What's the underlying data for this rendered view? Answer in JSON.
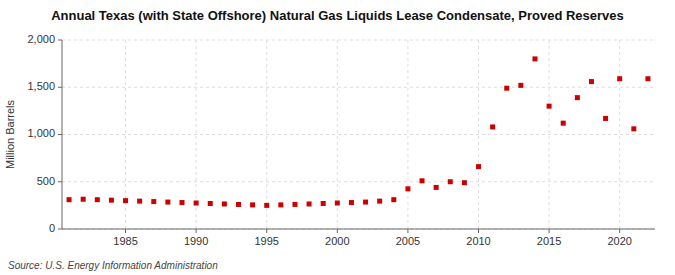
{
  "chart_data": {
    "type": "scatter",
    "title": "Annual Texas (with State Offshore) Natural Gas Liquids Lease Condensate, Proved Reserves",
    "ylabel": "Million Barrels",
    "annotations": [
      "Source: U.S. Energy Information Administration"
    ],
    "x": [
      1981,
      1982,
      1983,
      1984,
      1985,
      1986,
      1987,
      1988,
      1989,
      1990,
      1991,
      1992,
      1993,
      1994,
      1995,
      1996,
      1997,
      1998,
      1999,
      2000,
      2001,
      2002,
      2003,
      2004,
      2005,
      2006,
      2007,
      2008,
      2009,
      2010,
      2011,
      2012,
      2013,
      2014,
      2015,
      2016,
      2017,
      2018,
      2019,
      2020,
      2021,
      2022
    ],
    "values": [
      310,
      315,
      310,
      305,
      300,
      295,
      290,
      285,
      280,
      275,
      270,
      265,
      260,
      255,
      250,
      255,
      260,
      265,
      270,
      275,
      280,
      285,
      295,
      310,
      425,
      510,
      440,
      500,
      490,
      660,
      1080,
      1490,
      1520,
      1800,
      1300,
      1120,
      1390,
      1560,
      1170,
      1590,
      1060,
      1590
    ],
    "color": "#cc0000",
    "marker": "square",
    "xlim": [
      1980.5,
      2022.5
    ],
    "xticks": [
      1985,
      1990,
      1995,
      2000,
      2005,
      2010,
      2015,
      2020
    ],
    "ylim": [
      0,
      2000
    ],
    "yticks": [
      0,
      500,
      {
        "value": 1000,
        "label": "1,000"
      },
      {
        "value": 1500,
        "label": "1,500"
      },
      {
        "value": 2000,
        "label": "2,000"
      }
    ],
    "grid": true
  }
}
